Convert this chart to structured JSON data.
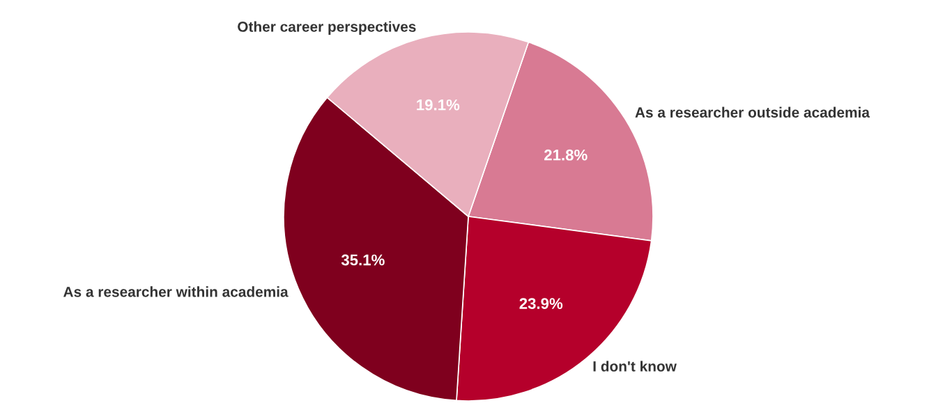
{
  "chart_data": {
    "type": "pie",
    "categories": [
      "As a researcher outside academia",
      "I don't know",
      "As a researcher within academia",
      "Other career perspectives"
    ],
    "values": [
      21.8,
      23.9,
      35.1,
      19.1
    ],
    "colors": [
      "#d87a93",
      "#b5002b",
      "#7f001e",
      "#e9afbd"
    ],
    "value_labels": [
      "21.8%",
      "23.9%",
      "35.1%",
      "19.1%"
    ],
    "legend": false
  }
}
